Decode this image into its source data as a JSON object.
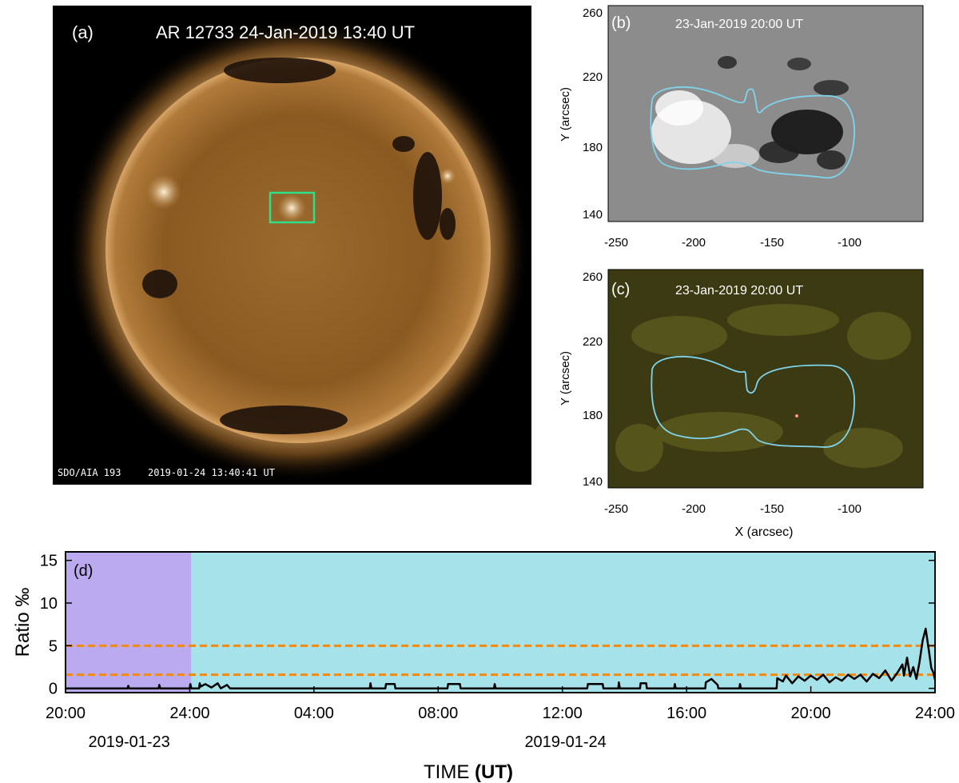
{
  "panel_a": {
    "label": "(a)",
    "title": "AR 12733  24-Jan-2019 13:40 UT",
    "footer_instrument": "SDO/AIA  193",
    "footer_time": "2019-01-24  13:40:41  UT",
    "colors": {
      "background": "#000000",
      "disk": "#8a5a22",
      "corona": "#c8955a",
      "box": "#2ee08a"
    }
  },
  "panel_b": {
    "label": "(b)",
    "title": "23-Jan-2019 20:00 UT",
    "ylabel": "Y (arcsec)",
    "yticks": [
      "260",
      "220",
      "180",
      "140"
    ],
    "xticks": [
      "-250",
      "-200",
      "-150",
      "-100"
    ],
    "colors": {
      "background": "#8c8c8c",
      "contour": "#7fd3ea"
    }
  },
  "panel_c": {
    "label": "(c)",
    "title": "23-Jan-2019 20:00 UT",
    "ylabel": "Y (arcsec)",
    "xlabel": "X (arcsec)",
    "yticks": [
      "260",
      "220",
      "180",
      "140"
    ],
    "xticks": [
      "-250",
      "-200",
      "-150",
      "-100"
    ],
    "colors": {
      "background": "#3b3a12",
      "contour": "#7fd3ea"
    }
  },
  "chart_data": {
    "type": "line",
    "label": "(d)",
    "xlabel_prefix": "TIME ",
    "xlabel_unit": "(UT)",
    "ylabel": "Ratio ‰",
    "xlim": [
      0,
      28
    ],
    "ylim": [
      -0.5,
      16
    ],
    "xticks": [
      {
        "v": 0,
        "label": "20:00"
      },
      {
        "v": 4,
        "label": "24:00"
      },
      {
        "v": 8,
        "label": "04:00"
      },
      {
        "v": 12,
        "label": "08:00"
      },
      {
        "v": 16,
        "label": "12:00"
      },
      {
        "v": 20,
        "label": "16:00"
      },
      {
        "v": 24,
        "label": "20:00"
      },
      {
        "v": 28,
        "label": "24:00"
      }
    ],
    "yticks": [
      0,
      5,
      10,
      15
    ],
    "date_labels": [
      {
        "v": 2.05,
        "label": "2019-01-23"
      },
      {
        "v": 16.1,
        "label": "2019-01-24"
      }
    ],
    "regions": [
      {
        "from": 0,
        "to": 4.05,
        "color": "#bbaaf0"
      },
      {
        "from": 4.05,
        "to": 28,
        "color": "#a6e2ea"
      }
    ],
    "thresholds": [
      {
        "y": 5,
        "color": "#ef8a12"
      },
      {
        "y": 1.6,
        "color": "#ef8a12"
      }
    ],
    "series": [
      {
        "color": "#000000",
        "points": [
          [
            0,
            0
          ],
          [
            2.0,
            0
          ],
          [
            2.02,
            0.3
          ],
          [
            2.05,
            0
          ],
          [
            3.0,
            0
          ],
          [
            3.02,
            0.4
          ],
          [
            3.05,
            0
          ],
          [
            4.0,
            0
          ],
          [
            4.02,
            0.5
          ],
          [
            4.05,
            0
          ],
          [
            4.3,
            0
          ],
          [
            4.32,
            0.6
          ],
          [
            4.35,
            0.2
          ],
          [
            4.5,
            0.5
          ],
          [
            4.7,
            0.1
          ],
          [
            4.9,
            0.6
          ],
          [
            5.0,
            0
          ],
          [
            5.2,
            0.4
          ],
          [
            5.3,
            0
          ],
          [
            9.8,
            0
          ],
          [
            9.82,
            0.6
          ],
          [
            9.85,
            0
          ],
          [
            10.3,
            0
          ],
          [
            10.32,
            0.5
          ],
          [
            10.6,
            0.5
          ],
          [
            10.62,
            0
          ],
          [
            12.3,
            0
          ],
          [
            12.32,
            0.5
          ],
          [
            12.7,
            0.5
          ],
          [
            12.72,
            0
          ],
          [
            13.8,
            0
          ],
          [
            13.82,
            0.5
          ],
          [
            13.85,
            0
          ],
          [
            16.8,
            0
          ],
          [
            16.82,
            0.5
          ],
          [
            17.3,
            0.5
          ],
          [
            17.32,
            0
          ],
          [
            17.8,
            0
          ],
          [
            17.82,
            0.7
          ],
          [
            17.85,
            0
          ],
          [
            18.5,
            0
          ],
          [
            18.52,
            0.6
          ],
          [
            18.7,
            0.6
          ],
          [
            18.72,
            0
          ],
          [
            19.6,
            0
          ],
          [
            19.62,
            0.5
          ],
          [
            19.65,
            0
          ],
          [
            20.6,
            0
          ],
          [
            20.62,
            0.7
          ],
          [
            20.8,
            1.1
          ],
          [
            21.0,
            0.4
          ],
          [
            21.02,
            0
          ],
          [
            21.7,
            0
          ],
          [
            21.72,
            0.5
          ],
          [
            21.75,
            0
          ],
          [
            22.9,
            0
          ],
          [
            22.92,
            1.2
          ],
          [
            23.1,
            0.8
          ],
          [
            23.2,
            1.5
          ],
          [
            23.4,
            0.6
          ],
          [
            23.6,
            1.4
          ],
          [
            23.8,
            0.9
          ],
          [
            24.0,
            1.5
          ],
          [
            24.2,
            1.0
          ],
          [
            24.4,
            1.6
          ],
          [
            24.6,
            0.7
          ],
          [
            24.8,
            1.3
          ],
          [
            25.0,
            0.9
          ],
          [
            25.2,
            1.6
          ],
          [
            25.4,
            1.1
          ],
          [
            25.6,
            1.6
          ],
          [
            25.8,
            0.8
          ],
          [
            26.0,
            1.7
          ],
          [
            26.2,
            1.2
          ],
          [
            26.4,
            2.1
          ],
          [
            26.6,
            0.9
          ],
          [
            26.8,
            1.9
          ],
          [
            26.95,
            2.8
          ],
          [
            27.0,
            1.5
          ],
          [
            27.1,
            3.6
          ],
          [
            27.2,
            1.4
          ],
          [
            27.3,
            2.5
          ],
          [
            27.4,
            1.1
          ],
          [
            27.5,
            3.1
          ],
          [
            27.6,
            5.6
          ],
          [
            27.7,
            7.0
          ],
          [
            27.8,
            4.5
          ],
          [
            27.88,
            2.4
          ],
          [
            27.95,
            1.8
          ],
          [
            28.0,
            1.0
          ]
        ]
      }
    ]
  }
}
